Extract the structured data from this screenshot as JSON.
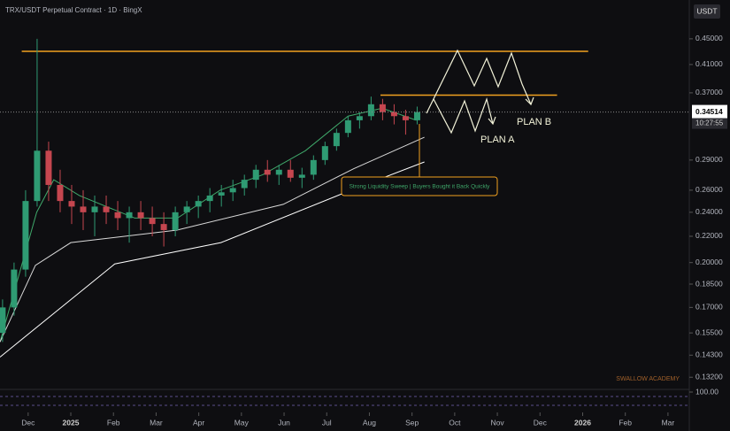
{
  "chart_data": {
    "type": "candlestick",
    "title": "TRX/USDT Perpetual Contract · 1D · BingX",
    "currency": "USDT",
    "log_scale": true,
    "up_color": "#2f9b73",
    "down_color": "#c5464f",
    "x": [
      -0.6,
      -0.33,
      -0.06,
      0.21,
      0.48,
      0.75,
      1.02,
      1.29,
      1.56,
      1.83,
      2.1,
      2.37,
      2.64,
      2.91,
      3.18,
      3.45,
      3.72,
      3.99,
      4.26,
      4.53,
      4.8,
      5.07,
      5.34,
      5.61,
      5.88,
      6.15,
      6.42,
      6.69,
      6.96,
      7.23,
      7.5,
      7.77,
      8.04,
      8.31,
      8.58,
      8.85,
      9.12
    ],
    "open": [
      0.155,
      0.17,
      0.195,
      0.25,
      0.3,
      0.265,
      0.25,
      0.245,
      0.24,
      0.245,
      0.24,
      0.235,
      0.24,
      0.235,
      0.23,
      0.225,
      0.24,
      0.245,
      0.25,
      0.255,
      0.258,
      0.262,
      0.27,
      0.28,
      0.275,
      0.28,
      0.272,
      0.275,
      0.29,
      0.305,
      0.32,
      0.335,
      0.34,
      0.355,
      0.345,
      0.34,
      0.335
    ],
    "high": [
      0.175,
      0.2,
      0.26,
      0.45,
      0.31,
      0.28,
      0.265,
      0.26,
      0.255,
      0.255,
      0.25,
      0.245,
      0.25,
      0.245,
      0.24,
      0.245,
      0.25,
      0.255,
      0.262,
      0.265,
      0.27,
      0.275,
      0.285,
      0.29,
      0.285,
      0.29,
      0.282,
      0.295,
      0.31,
      0.325,
      0.34,
      0.345,
      0.365,
      0.362,
      0.355,
      0.348,
      0.352
    ],
    "low": [
      0.15,
      0.165,
      0.19,
      0.245,
      0.25,
      0.24,
      0.23,
      0.225,
      0.22,
      0.23,
      0.225,
      0.215,
      0.225,
      0.22,
      0.212,
      0.22,
      0.23,
      0.235,
      0.24,
      0.245,
      0.25,
      0.255,
      0.262,
      0.268,
      0.265,
      0.268,
      0.262,
      0.27,
      0.285,
      0.3,
      0.315,
      0.325,
      0.335,
      0.335,
      0.33,
      0.318,
      0.33
    ],
    "close": [
      0.17,
      0.195,
      0.25,
      0.3,
      0.265,
      0.25,
      0.245,
      0.24,
      0.245,
      0.24,
      0.235,
      0.24,
      0.235,
      0.23,
      0.225,
      0.24,
      0.245,
      0.25,
      0.255,
      0.258,
      0.262,
      0.27,
      0.28,
      0.275,
      0.28,
      0.272,
      0.275,
      0.29,
      0.305,
      0.32,
      0.335,
      0.34,
      0.355,
      0.345,
      0.34,
      0.335,
      0.34514
    ],
    "lines": [
      {
        "color": "#3fa86a",
        "x": [
          -0.66,
          0.2,
          0.6,
          1.2,
          2.5,
          3.5,
          4.5,
          5.5,
          6.5,
          7.5,
          8.3,
          9.1
        ],
        "values": [
          0.15,
          0.24,
          0.27,
          0.255,
          0.235,
          0.235,
          0.26,
          0.275,
          0.3,
          0.34,
          0.35,
          0.335
        ]
      },
      {
        "color": "#d9d9d9",
        "x": [
          -0.66,
          0.17,
          1.0,
          3.49,
          5.98,
          7.63,
          9.29
        ],
        "values": [
          0.15,
          0.198,
          0.215,
          0.225,
          0.247,
          0.281,
          0.315
        ]
      },
      {
        "color": "#ffffff",
        "x": [
          -0.66,
          2.03,
          4.52,
          7.63,
          9.29
        ],
        "values": [
          0.142,
          0.199,
          0.215,
          0.261,
          0.288
        ]
      }
    ],
    "levels": [
      {
        "value": 0.43,
        "color": "#f0a020",
        "xlim": [
          -0.15,
          13.13
        ]
      },
      {
        "value": 0.367,
        "color": "#f0a020",
        "xlim": [
          8.26,
          12.4
        ]
      }
    ],
    "last_price": 0.34514,
    "countdown": "10:27:55",
    "xlim": [
      -0.66,
      15.5
    ],
    "ylim": [
      0.1263,
      0.518
    ],
    "xticks": [
      {
        "value": 0,
        "label": "Dec"
      },
      {
        "value": 1,
        "label": "2025"
      },
      {
        "value": 2,
        "label": "Feb"
      },
      {
        "value": 3,
        "label": "Mar"
      },
      {
        "value": 4,
        "label": "Apr"
      },
      {
        "value": 5,
        "label": "May"
      },
      {
        "value": 6,
        "label": "Jun"
      },
      {
        "value": 7,
        "label": "Jul"
      },
      {
        "value": 8,
        "label": "Aug"
      },
      {
        "value": 9,
        "label": "Sep"
      },
      {
        "value": 10,
        "label": "Oct"
      },
      {
        "value": 11,
        "label": "Nov"
      },
      {
        "value": 12,
        "label": "Dec"
      },
      {
        "value": 13,
        "label": "2026"
      },
      {
        "value": 14,
        "label": "Feb"
      },
      {
        "value": 15,
        "label": "Mar"
      }
    ],
    "yticks": [
      {
        "value": 0.45,
        "label": "0.45000"
      },
      {
        "value": 0.41,
        "label": "0.41000"
      },
      {
        "value": 0.37,
        "label": "0.37000"
      },
      {
        "value": 0.29,
        "label": "0.29000"
      },
      {
        "value": 0.26,
        "label": "0.26000"
      },
      {
        "value": 0.24,
        "label": "0.24000"
      },
      {
        "value": 0.22,
        "label": "0.22000"
      },
      {
        "value": 0.2,
        "label": "0.20000"
      },
      {
        "value": 0.185,
        "label": "0.18500"
      },
      {
        "value": 0.17,
        "label": "0.17000"
      },
      {
        "value": 0.155,
        "label": "0.15500"
      },
      {
        "value": 0.143,
        "label": "0.14300"
      },
      {
        "value": 0.132,
        "label": "0.13200"
      }
    ],
    "annotations": {
      "plan_a": "PLAN A",
      "plan_b": "PLAN B",
      "sweep": "Strong Liquidity Sweep | Buyers Bought it Back Quickly",
      "watermark": "SWALLOW ACADEMY"
    },
    "indicator_tick": {
      "value": 100,
      "label": "100.00"
    }
  }
}
